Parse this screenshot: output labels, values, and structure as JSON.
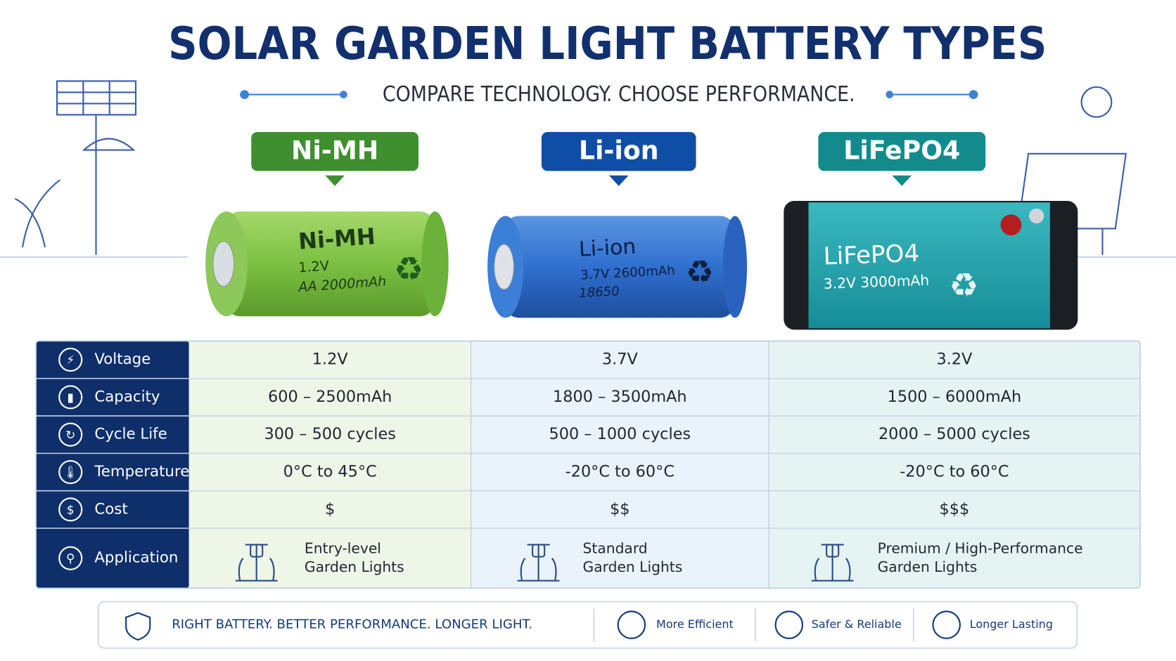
{
  "header": {
    "title": "SOLAR GARDEN LIGHT BATTERY TYPES",
    "subtitle": "COMPARE TECHNOLOGY. CHOOSE PERFORMANCE."
  },
  "batteries": [
    {
      "name": "Ni-MH",
      "label": "Ni-MH",
      "specs": [
        "1.2V",
        "AA 2000mAh"
      ]
    },
    {
      "name": "Li-ion",
      "label": "Li-ion",
      "specs": [
        "3.7V  2600mAh",
        "18650"
      ]
    },
    {
      "name": "LiFePO4",
      "label": "LiFePO4",
      "specs": [
        "3.2V  3000mAh"
      ]
    }
  ],
  "table": {
    "rows": [
      {
        "label": "Voltage",
        "values": [
          [
            "1.2V"
          ],
          [
            "3.7V"
          ],
          [
            "3.2V"
          ]
        ]
      },
      {
        "label": "Capacity",
        "values": [
          [
            "600 – 2500mAh"
          ],
          [
            "1800 – 3500mAh"
          ],
          [
            "1500 – 6000mAh"
          ]
        ]
      },
      {
        "label": "Cycle Life",
        "values": [
          [
            "300 – 500 cycles"
          ],
          [
            "500 – 1000 cycles"
          ],
          [
            "2000 – 5000 cycles"
          ]
        ]
      },
      {
        "label": "Temperature",
        "values": [
          [
            "0°C to 45°C"
          ],
          [
            "-20°C to 60°C"
          ],
          [
            "-20°C to 60°C"
          ]
        ]
      },
      {
        "label": "Cost",
        "values": [
          [
            "$"
          ],
          [
            "$$"
          ],
          [
            "$$$"
          ]
        ]
      },
      {
        "label": "Application",
        "values": [
          [
            "Entry-level",
            "Garden Lights"
          ],
          [
            "Standard",
            "Garden Lights"
          ],
          [
            "Premium / High-Performance",
            "Garden Lights"
          ]
        ]
      }
    ]
  },
  "footer": {
    "slogan": "RIGHT BATTERY. BETTER PERFORMANCE. LONGER LIGHT.",
    "badges": [
      "More Efficient",
      "Safer & Reliable",
      "Longer Lasting"
    ]
  }
}
